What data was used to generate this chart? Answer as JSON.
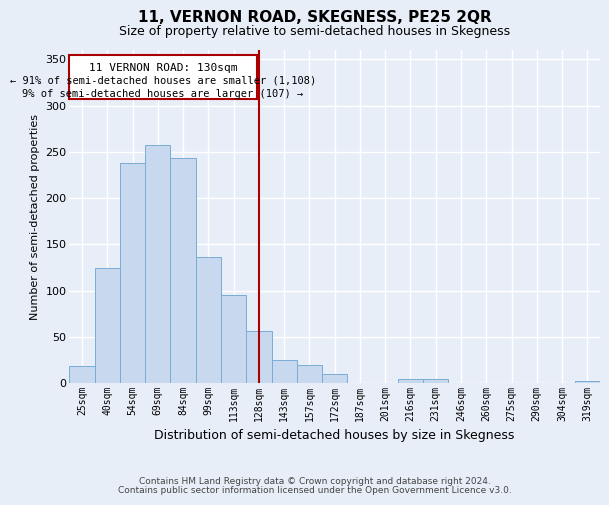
{
  "title": "11, VERNON ROAD, SKEGNESS, PE25 2QR",
  "subtitle": "Size of property relative to semi-detached houses in Skegness",
  "xlabel": "Distribution of semi-detached houses by size in Skegness",
  "ylabel": "Number of semi-detached properties",
  "bin_labels": [
    "25sqm",
    "40sqm",
    "54sqm",
    "69sqm",
    "84sqm",
    "99sqm",
    "113sqm",
    "128sqm",
    "143sqm",
    "157sqm",
    "172sqm",
    "187sqm",
    "201sqm",
    "216sqm",
    "231sqm",
    "246sqm",
    "260sqm",
    "275sqm",
    "290sqm",
    "304sqm",
    "319sqm"
  ],
  "bar_heights": [
    18,
    124,
    238,
    257,
    243,
    136,
    95,
    56,
    25,
    20,
    10,
    0,
    0,
    4,
    4,
    0,
    0,
    0,
    0,
    0,
    2
  ],
  "bar_color": "#c8d9ef",
  "bar_edge_color": "#7aacd6",
  "highlight_bar_index": 7,
  "highlight_color": "#aa0000",
  "ylim": [
    0,
    360
  ],
  "yticks": [
    0,
    50,
    100,
    150,
    200,
    250,
    300,
    350
  ],
  "annotation_title": "11 VERNON ROAD: 130sqm",
  "annotation_line1": "← 91% of semi-detached houses are smaller (1,108)",
  "annotation_line2": "9% of semi-detached houses are larger (107) →",
  "footnote1": "Contains HM Land Registry data © Crown copyright and database right 2024.",
  "footnote2": "Contains public sector information licensed under the Open Government Licence v3.0.",
  "background_color": "#e8eef8"
}
